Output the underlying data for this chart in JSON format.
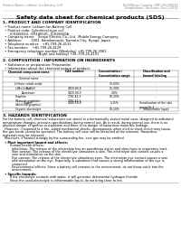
{
  "bg_color": "#ffffff",
  "header_left": "Product Name: Lithium Ion Battery Cell",
  "header_right_line1": "BU208/xxx Catalog: SRF-049-00010",
  "header_right_line2": "Established / Revision: Dec.1.2010",
  "title": "Safety data sheet for chemical products (SDS)",
  "section1_title": "1. PRODUCT AND COMPANY IDENTIFICATION",
  "section1_lines": [
    "  • Product name: Lithium Ion Battery Cell",
    "  • Product code: Cylindrical-type cell",
    "       ICR18650U, ICR18650C, ICR18650A",
    "  • Company name:   Sanyo Electric Co., Ltd.  Mobile Energy Company",
    "  • Address:         2001  Kamikamachi, Sumoto-City, Hyogo, Japan",
    "  • Telephone number:   +81-799-26-4111",
    "  • Fax number:    +81-799-26-4129",
    "  • Emergency telephone number (Weekday) +81-799-26-3062",
    "                                  (Night and holiday) +81-799-26-4101"
  ],
  "section2_title": "2. COMPOSITION / INFORMATION ON INGREDIENTS",
  "section2_intro": "  • Substance or preparation: Preparation",
  "section2_sub": "  • Information about the chemical nature of product:",
  "table_headers": [
    "Chemical component name",
    "CAS number",
    "Concentration /\nConcentration range",
    "Classification and\nhazard labeling"
  ],
  "table_col1": [
    "General name",
    "Lithium cobalt oxide\n(LiMn-CoO₂(Ni))",
    "Iron",
    "Aluminum",
    "Graphite\n(Natural graphite)\n(Artificial graphite)",
    "Copper",
    "Organic electrolyte"
  ],
  "table_col2": [
    "",
    "-",
    "7439-89-6",
    "7429-90-5",
    "7782-42-5\n7782-42-5",
    "7440-50-8",
    "-"
  ],
  "table_col3": [
    "",
    "30-60%",
    "15-30%",
    "2-6%",
    "10-20%",
    "5-15%",
    "10-20%"
  ],
  "table_col4": [
    "",
    "-",
    "-",
    "-",
    "-",
    "Sensitization of the skin\ngroup No.2",
    "Inflammable liquid"
  ],
  "section3_title": "3. HAZARDS IDENTIFICATION",
  "section3_para1": [
    "For the battery cell, chemical substances are stored in a hermetically sealed metal case, designed to withstand",
    "temperature changes, pressure-specifications during normal use. As a result, during normal use, there is no",
    "physical danger of ignition or explosion and there is no danger of hazardous materials leakage.",
    "  However, if exposed to a fire, added mechanical shocks, decomposed, when electric short-circuit may cause,",
    "the gas inside cannot be operated. The battery cell case will be breached at the extreme. Hazardous",
    "materials may be released.",
    "  Moreover, if heated strongly by the surrounding fire, soot gas may be emitted."
  ],
  "section3_bullet1": "  • Most important hazard and effects:",
  "section3_sub1": "       Human health effects:",
  "section3_sub1_lines": [
    "         Inhalation: The release of the electrolyte has an anesthesia action and stimulates in respiratory tract.",
    "         Skin contact: The release of the electrolyte stimulates a skin. The electrolyte skin contact causes a",
    "         sore and stimulation on the skin.",
    "         Eye contact: The release of the electrolyte stimulates eyes. The electrolyte eye contact causes a sore",
    "         and stimulation on the eye. Especially, a substance that causes a strong inflammation of the eye is",
    "         contained.",
    "         Environmental effects: Since a battery cell remains in the environment, do not throw out it into the",
    "         environment."
  ],
  "section3_bullet2": "  • Specific hazards:",
  "section3_sub2_lines": [
    "       If the electrolyte contacts with water, it will generate detrimental hydrogen fluoride.",
    "       Since the used-electrolyte is inflammable liquid, do not bring close to fire."
  ]
}
